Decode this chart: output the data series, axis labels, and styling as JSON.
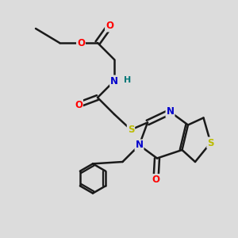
{
  "bg_color": "#dcdcdc",
  "bond_color": "#1a1a1a",
  "bond_width": 1.8,
  "atom_colors": {
    "O": "#ff0000",
    "N": "#0000cc",
    "S": "#bbbb00",
    "H": "#007777",
    "C": "#1a1a1a"
  },
  "font_size": 8.5,
  "figsize": [
    3.0,
    3.0
  ],
  "dpi": 100,
  "xlim": [
    0,
    10
  ],
  "ylim": [
    0,
    10
  ]
}
